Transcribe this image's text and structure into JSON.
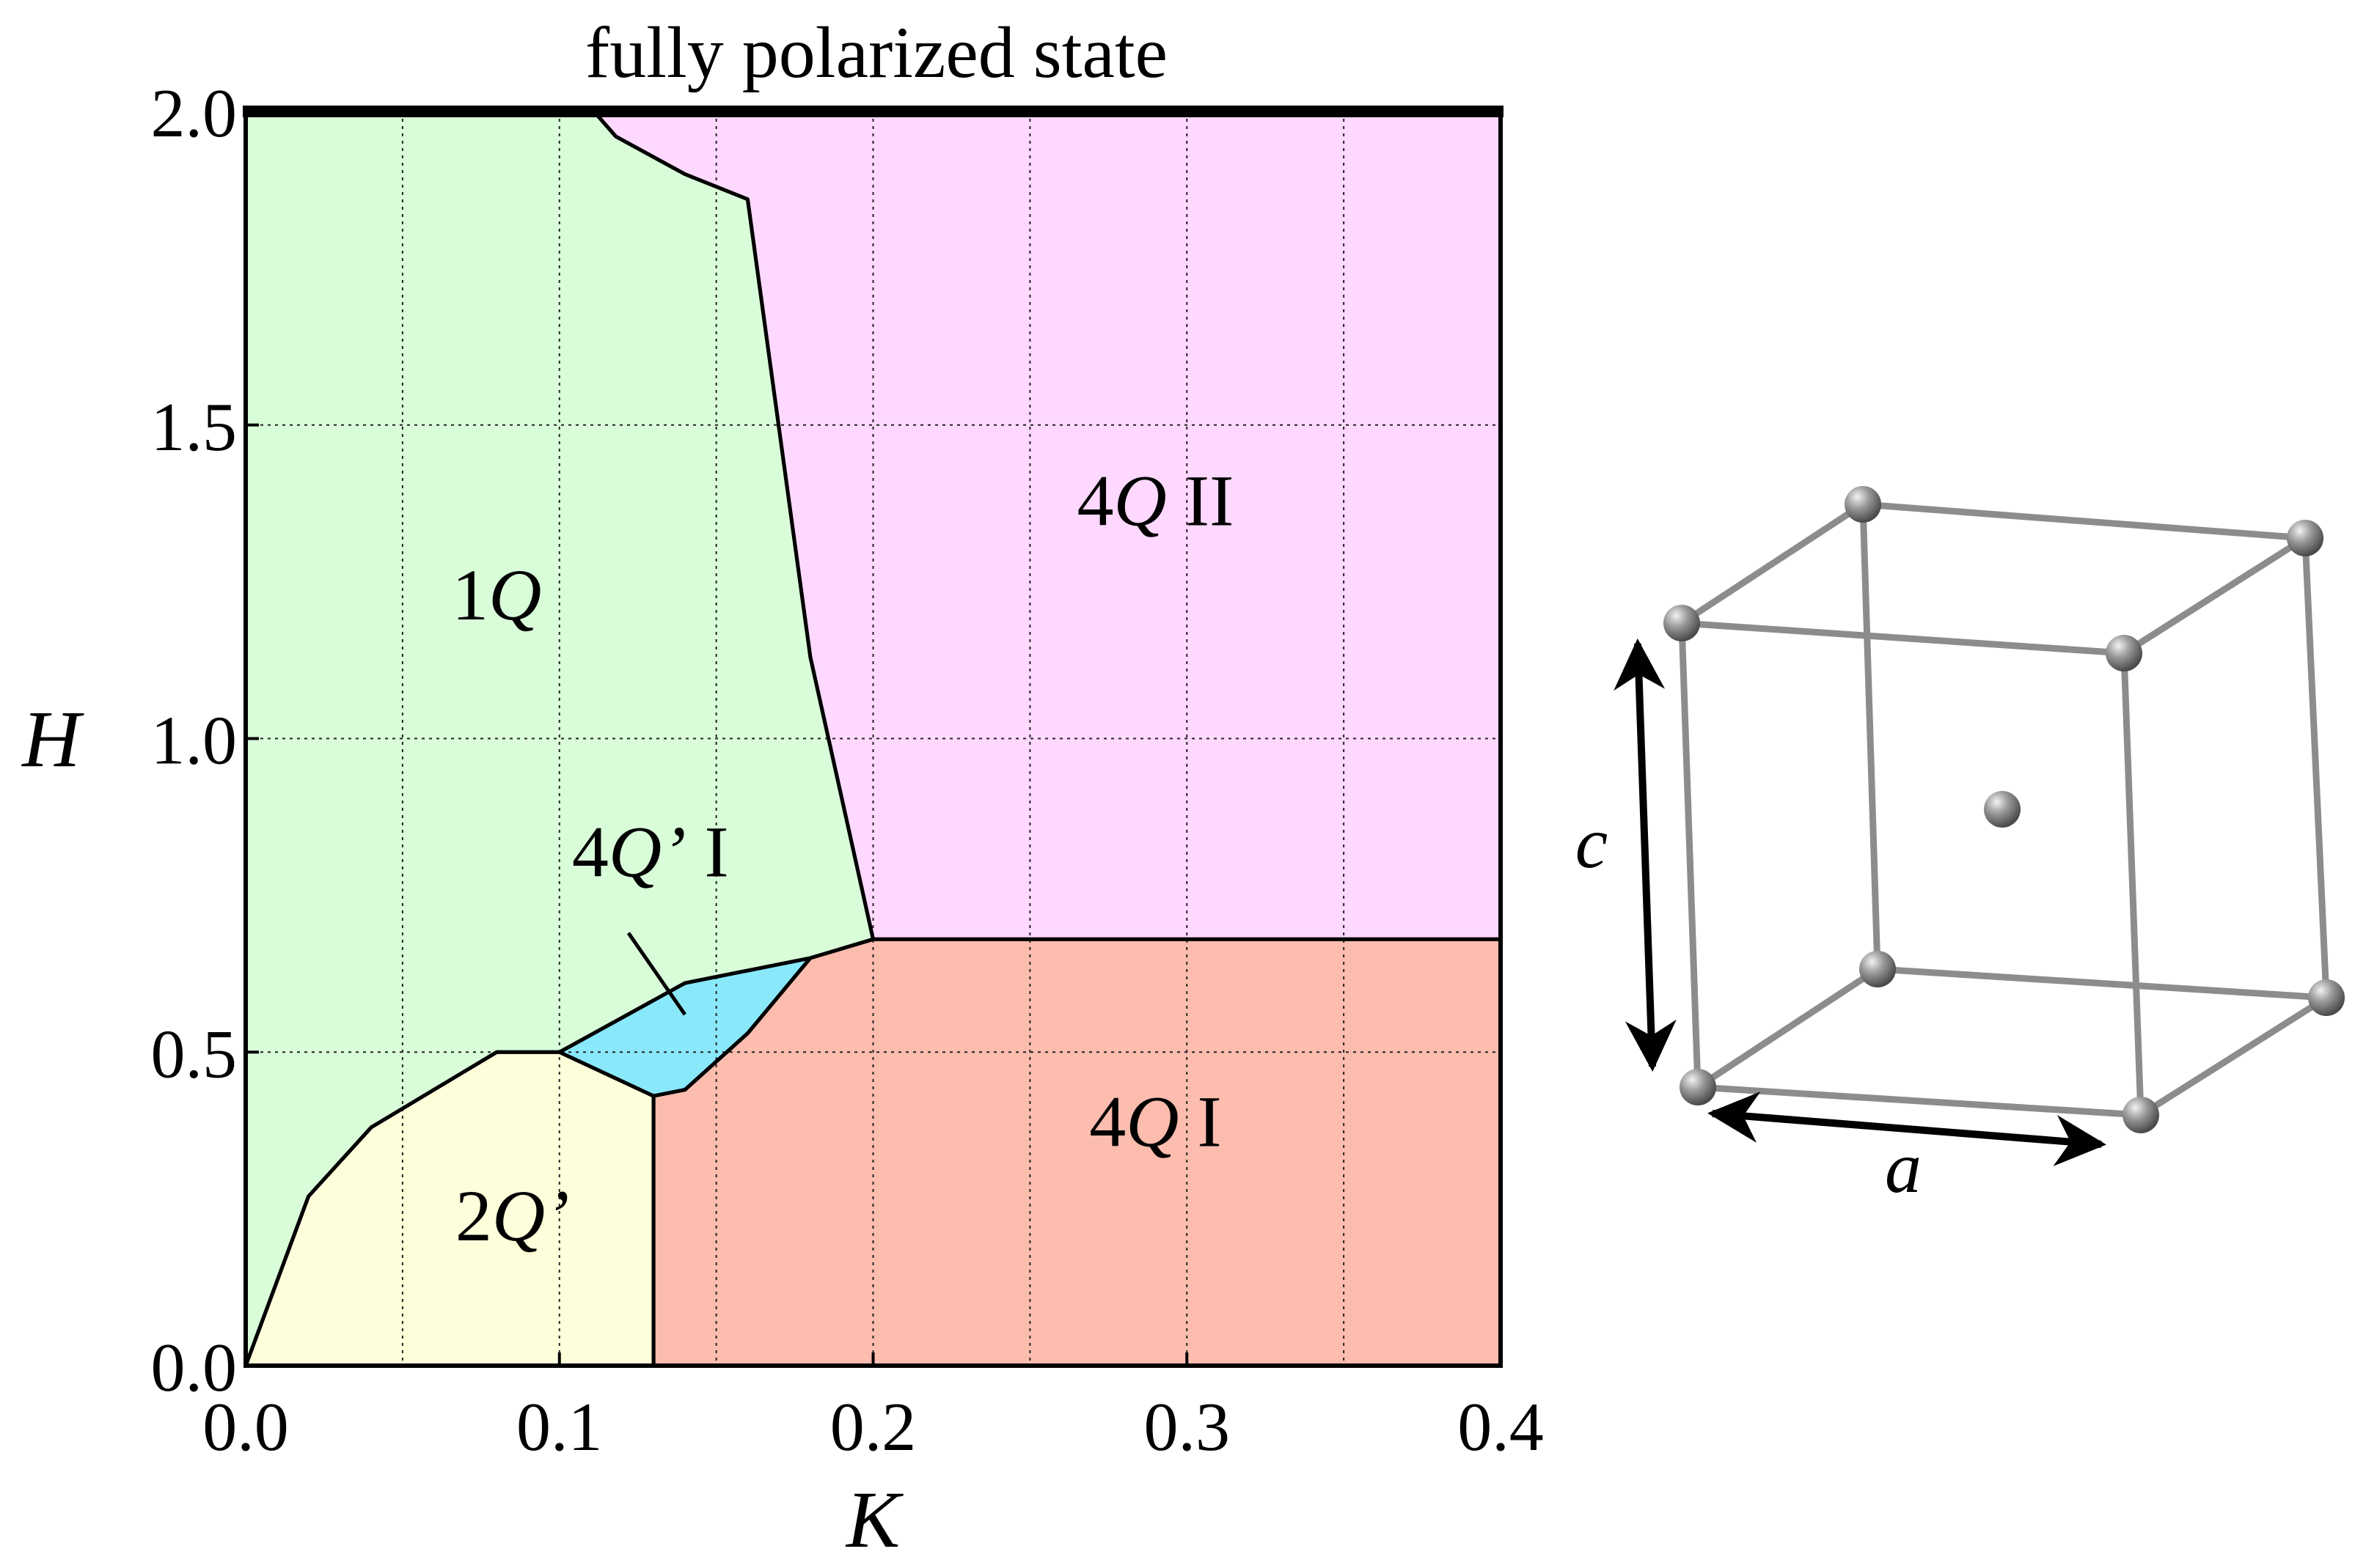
{
  "chart_data": {
    "type": "phase-diagram",
    "title": "",
    "xlabel": "K",
    "ylabel": "H",
    "xlim": [
      0.0,
      0.4
    ],
    "ylim": [
      0.0,
      2.0
    ],
    "xticks": [
      "0.0",
      "0.1",
      "0.2",
      "0.3",
      "0.4"
    ],
    "yticks": [
      "0.0",
      "0.5",
      "1.0",
      "1.5",
      "2.0"
    ],
    "grid": true,
    "top_boundary_label": "fully polarized state",
    "top_boundary_H": 2.0,
    "regions": [
      {
        "name": "1Q",
        "label_prefix": "1",
        "label_italic": "Q",
        "label_suffix": "",
        "color": "#d9fcd9",
        "label_at": [
          0.08,
          1.19
        ],
        "polygon": [
          [
            0.0,
            0.0
          ],
          [
            0.0,
            2.0
          ],
          [
            0.111,
            2.0
          ],
          [
            0.118,
            1.96
          ],
          [
            0.14,
            1.9
          ],
          [
            0.16,
            1.86
          ],
          [
            0.18,
            1.13
          ],
          [
            0.2,
            0.68
          ],
          [
            0.18,
            0.65
          ],
          [
            0.14,
            0.61
          ],
          [
            0.1,
            0.5
          ],
          [
            0.08,
            0.5
          ],
          [
            0.04,
            0.38
          ],
          [
            0.02,
            0.27
          ]
        ]
      },
      {
        "name": "4Q II",
        "label_prefix": "4",
        "label_italic": "Q",
        "label_suffix": " II",
        "color": "#fed8fe",
        "label_at": [
          0.29,
          1.34
        ],
        "polygon": [
          [
            0.111,
            2.0
          ],
          [
            0.4,
            2.0
          ],
          [
            0.4,
            0.68
          ],
          [
            0.2,
            0.68
          ],
          [
            0.18,
            1.13
          ],
          [
            0.16,
            1.86
          ],
          [
            0.14,
            1.9
          ],
          [
            0.118,
            1.96
          ]
        ]
      },
      {
        "name": "4Q I",
        "label_prefix": "4",
        "label_italic": "Q",
        "label_suffix": " I",
        "color": "#fcbcae",
        "label_at": [
          0.29,
          0.35
        ],
        "polygon": [
          [
            0.13,
            0.0
          ],
          [
            0.4,
            0.0
          ],
          [
            0.4,
            0.68
          ],
          [
            0.2,
            0.68
          ],
          [
            0.18,
            0.65
          ],
          [
            0.16,
            0.53
          ],
          [
            0.14,
            0.44
          ],
          [
            0.13,
            0.43
          ]
        ]
      },
      {
        "name": "2Q'",
        "label_prefix": "2",
        "label_italic": "Q’",
        "label_suffix": "",
        "color": "#fefedb",
        "label_at": [
          0.085,
          0.2
        ],
        "polygon": [
          [
            0.0,
            0.0
          ],
          [
            0.02,
            0.27
          ],
          [
            0.04,
            0.38
          ],
          [
            0.08,
            0.5
          ],
          [
            0.1,
            0.5
          ],
          [
            0.13,
            0.43
          ],
          [
            0.13,
            0.0
          ]
        ]
      },
      {
        "name": "4Q' I",
        "label_prefix": "4",
        "label_italic": "Q’",
        "label_suffix": " I",
        "color": "#8ae8fb",
        "label_at": [
          0.129,
          0.78
        ],
        "pointer_from": [
          0.122,
          0.69
        ],
        "pointer_to": [
          0.14,
          0.56
        ],
        "polygon": [
          [
            0.1,
            0.5
          ],
          [
            0.14,
            0.61
          ],
          [
            0.18,
            0.65
          ],
          [
            0.16,
            0.53
          ],
          [
            0.14,
            0.44
          ],
          [
            0.13,
            0.43
          ]
        ]
      }
    ]
  },
  "lattice": {
    "axis_labels": {
      "a": "a",
      "c": "c"
    },
    "bond_color": "#8c8c8c",
    "atom_color": "#7f7f7f"
  }
}
